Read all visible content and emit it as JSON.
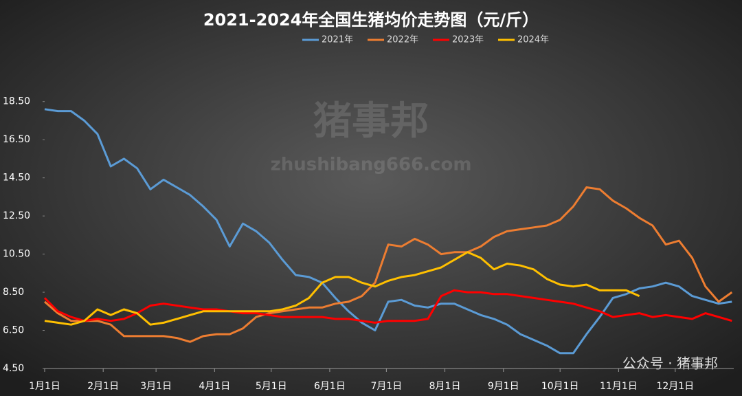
{
  "chart_data": {
    "type": "line",
    "title": "2021-2024年全国生猪均价走势图（元/斤）",
    "watermark": "猪事邦",
    "watermark_url": "zhushibang666.com",
    "source": "公众号 · 猪事邦",
    "x": [
      0,
      7,
      14,
      21,
      28,
      35,
      42,
      49,
      56,
      63,
      70,
      77,
      84,
      91,
      98,
      105,
      112,
      119,
      126,
      133,
      140,
      147,
      154,
      161,
      168,
      175,
      182,
      189,
      196,
      203,
      210,
      217,
      224,
      231,
      238,
      245,
      252,
      259,
      266,
      273,
      280,
      287,
      294,
      301,
      308,
      315,
      322,
      329,
      336,
      343,
      350,
      357,
      364
    ],
    "xlim": [
      0,
      365
    ],
    "xticks": [
      {
        "value": 0,
        "label": "1月1日"
      },
      {
        "value": 31,
        "label": "2月1日"
      },
      {
        "value": 59,
        "label": "3月1日"
      },
      {
        "value": 90,
        "label": "4月1日"
      },
      {
        "value": 120,
        "label": "5月1日"
      },
      {
        "value": 151,
        "label": "6月1日"
      },
      {
        "value": 181,
        "label": "7月1日"
      },
      {
        "value": 212,
        "label": "8月1日"
      },
      {
        "value": 243,
        "label": "9月1日"
      },
      {
        "value": 273,
        "label": "10月1日"
      },
      {
        "value": 304,
        "label": "11月1日"
      },
      {
        "value": 334,
        "label": "12月1日"
      }
    ],
    "ylim": [
      4.5,
      19.5
    ],
    "yticks": [
      {
        "value": 4.5,
        "label": "4.50"
      },
      {
        "value": 6.5,
        "label": "6.50"
      },
      {
        "value": 8.5,
        "label": "8.50"
      },
      {
        "value": 10.5,
        "label": "10.50"
      },
      {
        "value": 12.5,
        "label": "12.50"
      },
      {
        "value": 14.5,
        "label": "14.50"
      },
      {
        "value": 16.5,
        "label": "16.50"
      },
      {
        "value": 18.5,
        "label": "18.50"
      }
    ],
    "legend": "top",
    "series": [
      {
        "name": "2021年",
        "color": "#5b9bd5",
        "values": [
          18.1,
          18.0,
          18.0,
          17.5,
          16.8,
          15.1,
          15.5,
          15.0,
          13.9,
          14.4,
          14.0,
          13.6,
          13.0,
          12.3,
          10.9,
          12.1,
          11.7,
          11.1,
          10.2,
          9.4,
          9.3,
          9.0,
          8.2,
          7.5,
          6.9,
          6.5,
          8.0,
          8.1,
          7.8,
          7.7,
          7.9,
          7.9,
          7.6,
          7.3,
          7.1,
          6.8,
          6.3,
          6.0,
          5.7,
          5.3,
          5.3,
          6.3,
          7.2,
          8.2,
          8.4,
          8.7,
          8.8,
          9.0,
          8.8,
          8.3,
          8.1,
          7.9,
          8.0
        ]
      },
      {
        "name": "2022年",
        "color": "#ed7d31",
        "values": [
          8.0,
          7.4,
          7.0,
          7.0,
          7.0,
          6.8,
          6.2,
          6.2,
          6.2,
          6.2,
          6.1,
          5.9,
          6.2,
          6.3,
          6.3,
          6.6,
          7.2,
          7.4,
          7.5,
          7.6,
          7.7,
          7.7,
          7.9,
          8.0,
          8.3,
          9.0,
          11.0,
          10.9,
          11.3,
          11.0,
          10.5,
          10.6,
          10.6,
          10.9,
          11.4,
          11.7,
          11.8,
          11.9,
          12.0,
          12.3,
          13.0,
          14.0,
          13.9,
          13.3,
          12.9,
          12.4,
          12.0,
          11.0,
          11.2,
          10.3,
          8.8,
          8.0,
          8.5
        ]
      },
      {
        "name": "2023年",
        "color": "#ff0000",
        "values": [
          8.2,
          7.5,
          7.2,
          7.0,
          7.1,
          7.0,
          7.1,
          7.4,
          7.8,
          7.9,
          7.8,
          7.7,
          7.6,
          7.6,
          7.5,
          7.4,
          7.4,
          7.3,
          7.2,
          7.2,
          7.2,
          7.2,
          7.1,
          7.1,
          7.0,
          6.9,
          7.0,
          7.0,
          7.0,
          7.1,
          8.3,
          8.6,
          8.5,
          8.5,
          8.4,
          8.4,
          8.3,
          8.2,
          8.1,
          8.0,
          7.9,
          7.7,
          7.5,
          7.2,
          7.3,
          7.4,
          7.2,
          7.3,
          7.2,
          7.1,
          7.4,
          7.2,
          7.0
        ]
      },
      {
        "name": "2024年",
        "color": "#ffc000",
        "values": [
          7.0,
          6.9,
          6.8,
          7.0,
          7.6,
          7.3,
          7.6,
          7.4,
          6.8,
          6.9,
          7.1,
          7.3,
          7.5,
          7.5,
          7.5,
          7.5,
          7.5,
          7.5,
          7.6,
          7.8,
          8.2,
          9.0,
          9.3,
          9.3,
          9.0,
          8.8,
          9.1,
          9.3,
          9.4,
          9.6,
          9.8,
          10.2,
          10.6,
          10.3,
          9.7,
          10.0,
          9.9,
          9.7,
          9.2,
          8.9,
          8.8,
          8.9,
          8.6,
          8.6,
          8.6,
          8.3,
          null,
          null,
          null,
          null,
          null,
          null,
          null
        ]
      }
    ]
  }
}
